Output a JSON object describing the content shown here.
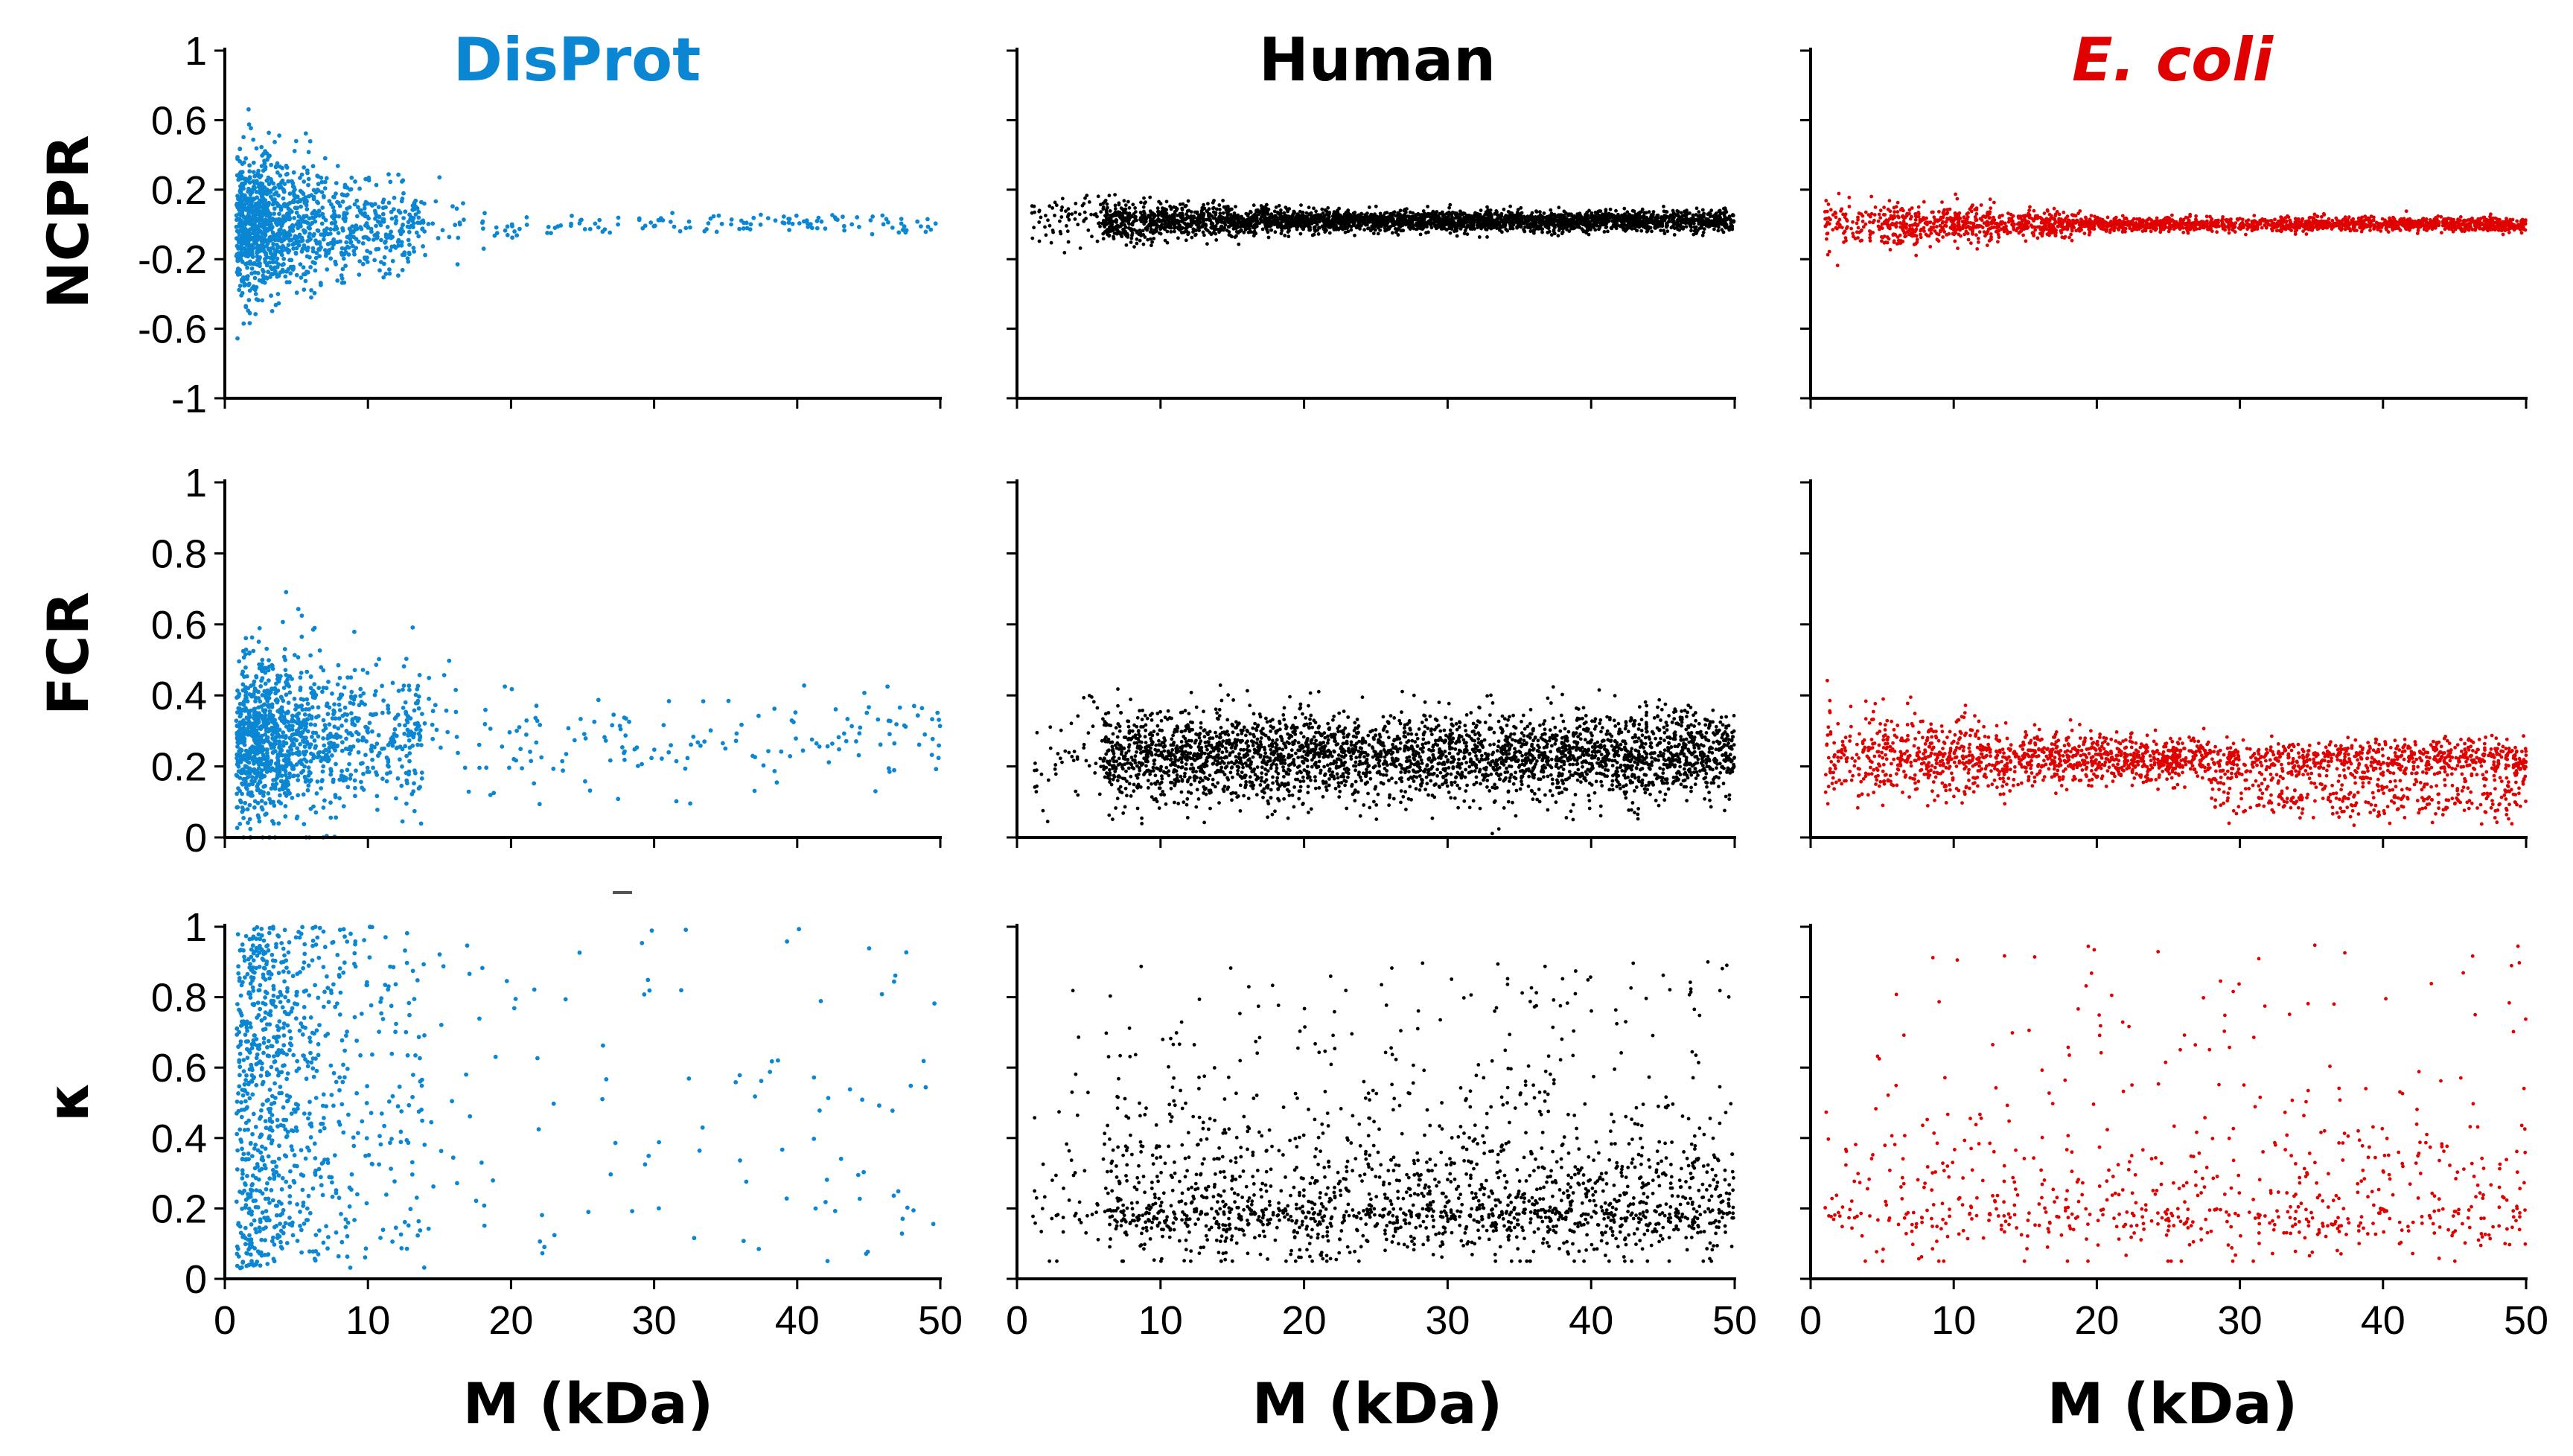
{
  "chart_data": {
    "type": "scatter",
    "layout": "3x3 grid of scatter panels",
    "columns": [
      {
        "id": "disprot",
        "title": "DisProt",
        "italic": false,
        "color": "#0A86D3",
        "n": 1400
      },
      {
        "id": "human",
        "title": "Human",
        "italic": false,
        "color": "#000000",
        "n": 3200
      },
      {
        "id": "ecoli",
        "title": "E. coli",
        "italic": true,
        "color": "#E00000",
        "n": 2200
      }
    ],
    "rows": [
      {
        "id": "ncpr",
        "ylabel": "NCPR",
        "ylim": [
          -1,
          1
        ],
        "yticks": [
          1,
          0.6,
          0.2,
          -0.2,
          -0.6,
          -1
        ],
        "ytick_labels": [
          "1",
          "0.6",
          "0.2",
          "-0.2",
          "-0.6",
          "-1"
        ]
      },
      {
        "id": "fcr",
        "ylabel": "FCR",
        "ylim": [
          0,
          1
        ],
        "yticks": [
          1,
          0.8,
          0.6,
          0.4,
          0.2,
          0
        ],
        "ytick_labels": [
          "1",
          "0.8",
          "0.6",
          "0.4",
          "0.2",
          "0"
        ]
      },
      {
        "id": "kappa",
        "ylabel": "κ",
        "ylim": [
          0,
          1
        ],
        "yticks": [
          1,
          0.8,
          0.6,
          0.4,
          0.2,
          0
        ],
        "ytick_labels": [
          "1",
          "0.8",
          "0.6",
          "0.4",
          "0.2",
          "0"
        ]
      }
    ],
    "xlim": [
      0,
      50
    ],
    "xticks": [
      0,
      10,
      20,
      30,
      40,
      50
    ],
    "xtick_labels": [
      "0",
      "10",
      "20",
      "30",
      "40",
      "50"
    ],
    "xlabel": "M (kDa)",
    "grid": false,
    "distributions": {
      "disprot": {
        "ncpr": {
          "center": 0.0,
          "spread_at_low_M": 0.22,
          "spread_at_high_M": 0.03,
          "x_concentration": "heavy below 12 kDa, sparse to 50 kDa"
        },
        "fcr": {
          "center": 0.28,
          "spread_at_low_M": 0.12,
          "spread_at_high_M": 0.08,
          "x_concentration": "heavy below 12 kDa, sparse to 50 kDa"
        },
        "kappa": {
          "center": 0.45,
          "range": [
            0.03,
            1.0
          ],
          "x_concentration": "heavy below 12 kDa, sparse to 50 kDa"
        }
      },
      "human": {
        "ncpr": {
          "center": 0.02,
          "spread_at_low_M": 0.07,
          "spread_at_high_M": 0.03,
          "x_range": [
            1,
            50
          ],
          "x_concentration": "dense from 6 to 50 kDa"
        },
        "fcr": {
          "center": 0.23,
          "spread_at_low_M": 0.07,
          "spread_at_high_M": 0.06,
          "x_range": [
            1,
            50
          ],
          "x_concentration": "dense from 6 to 50 kDa"
        },
        "kappa": {
          "center": 0.2,
          "range": [
            0.05,
            0.9
          ],
          "x_range": [
            1,
            50
          ],
          "x_concentration": "dense from 5 to 50 kDa, denser near bottom"
        }
      },
      "ecoli": {
        "ncpr": {
          "center": 0.0,
          "spread_at_low_M": 0.08,
          "spread_at_high_M": 0.02,
          "x_range": [
            1,
            50
          ],
          "x_concentration": "dense from 5 to 50 kDa"
        },
        "fcr": {
          "center": 0.22,
          "secondary_band": 0.11,
          "spread_at_low_M": 0.07,
          "spread_at_high_M": 0.03,
          "x_range": [
            1,
            50
          ],
          "x_concentration": "dense from 5 to 50 kDa"
        },
        "kappa": {
          "center": 0.2,
          "range": [
            0.05,
            0.95
          ],
          "x_range": [
            1,
            50
          ],
          "x_concentration": "sparser, spread across 3 to 50 kDa"
        }
      }
    }
  }
}
